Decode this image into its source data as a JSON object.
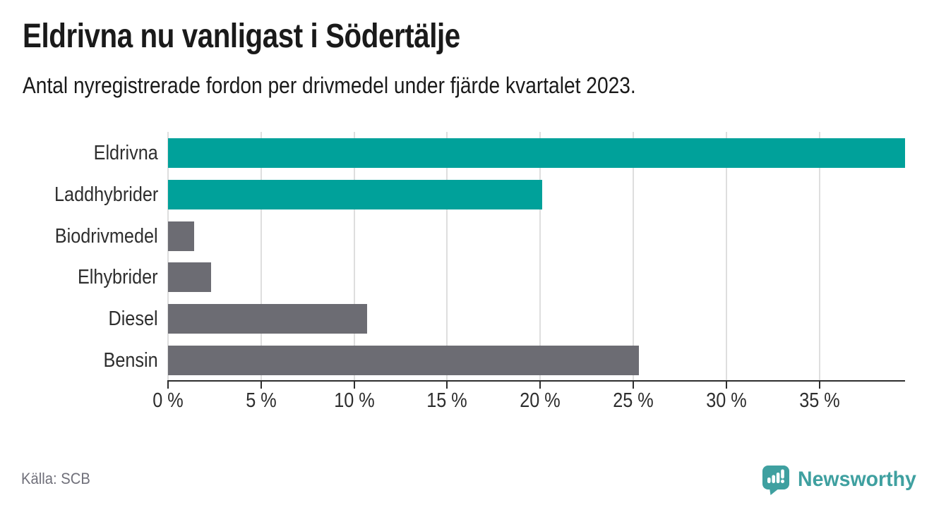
{
  "header": {
    "title": "Eldrivna nu vanligast i Södertälje",
    "subtitle": "Antal nyregistrerade fordon per drivmedel under fjärde kvartalet 2023."
  },
  "chart_data": {
    "type": "bar",
    "orientation": "horizontal",
    "title": "Eldrivna nu vanligast i Södertälje",
    "subtitle": "Antal nyregistrerade fordon per drivmedel under fjärde kvartalet 2023.",
    "categories": [
      "Eldrivna",
      "Laddhybrider",
      "Biodrivmedel",
      "Elhybrider",
      "Diesel",
      "Bensin"
    ],
    "values": [
      39.6,
      20.1,
      1.4,
      2.3,
      10.7,
      25.3
    ],
    "unit": "%",
    "series_colors": [
      "#00A19A",
      "#00A19A",
      "#6C6C73",
      "#6C6C73",
      "#6C6C73",
      "#6C6C73"
    ],
    "xlim": [
      0,
      39.6
    ],
    "xticks": [
      0,
      5,
      10,
      15,
      20,
      25,
      30,
      35
    ],
    "xtick_labels": [
      "0 %",
      "5 %",
      "10 %",
      "15 %",
      "20 %",
      "25 %",
      "30 %",
      "35 %"
    ],
    "xlabel": "",
    "ylabel": "",
    "grid": "vertical",
    "legend": false,
    "value_labels": false
  },
  "colors": {
    "accent_teal": "#00A19A",
    "bar_gray": "#6C6C73",
    "axis": "#2D2D2D",
    "gridline": "#DEDEDE",
    "title_text": "#1A1A1A",
    "label_text": "#2E2E2E",
    "source_text": "#70707A",
    "brand_teal": "#3FA0A0"
  },
  "footer": {
    "source": "Källa: SCB",
    "brand": "Newsworthy"
  },
  "icons": {
    "brand_logo": "newsworthy-speech-bubble-bar-chart-icon"
  }
}
